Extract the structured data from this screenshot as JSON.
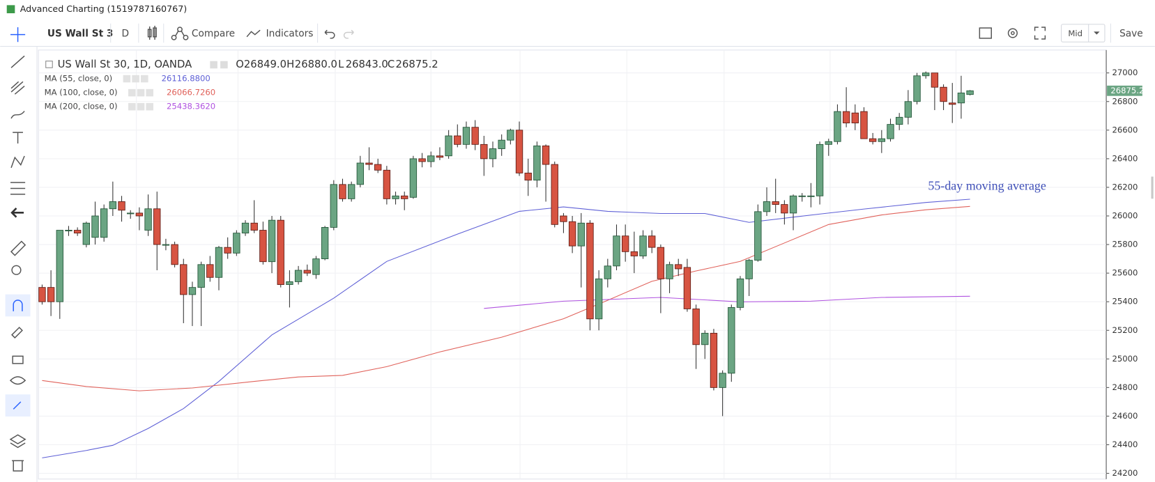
{
  "window_title": "Advanced Charting (1519787160767)",
  "toolbar": {
    "symbol": "US Wall St 3",
    "interval": "D",
    "compare": "Compare",
    "indicators": "Indicators",
    "price_mode": "Mid",
    "save": "Save"
  },
  "legend": {
    "name": "US Wall St 30, 1D, OANDA",
    "o_key": "O",
    "open": "26849.0",
    "h_key": "H",
    "high": "26880.0",
    "l_key": "L",
    "low": "26843.0",
    "c_key": "C",
    "close": "26875.2"
  },
  "chart_data": {
    "type": "candlestick",
    "open": [
      25500,
      25500,
      25400,
      25900,
      25900,
      25800,
      25850,
      25850,
      26050,
      26100,
      26020,
      26020,
      25900,
      26050,
      25800,
      25800,
      25660,
      25450,
      25500,
      25660,
      25570,
      25780,
      25740,
      25880,
      25950,
      25900,
      25680,
      25970,
      25520,
      25540,
      25620,
      25590,
      25700,
      25920,
      26220,
      26120,
      26220,
      26370,
      26360,
      26320,
      26120,
      26140,
      26130,
      26400,
      26380,
      26420,
      26420,
      26560,
      26500,
      26620,
      26500,
      26400,
      26470,
      26530,
      26600,
      26300,
      26250,
      26490,
      26360,
      26000,
      25960,
      25790,
      25950,
      25280,
      25560,
      25650,
      25860,
      25750,
      25720,
      25860,
      25780,
      25560,
      25660,
      25640,
      25350,
      25100,
      25180,
      24800,
      24900,
      25360,
      25560,
      25690,
      26030,
      26100,
      26080,
      26020,
      26140,
      26140,
      26140,
      26500,
      26520,
      26730,
      26720,
      26730,
      26540,
      26520,
      26540,
      26640,
      26690,
      26800,
      26980,
      27000,
      26900,
      26790,
      26790,
      26849
    ],
    "high": [
      25520,
      25620,
      25900,
      25930,
      25920,
      25960,
      26100,
      26080,
      26240,
      26140,
      26040,
      26060,
      26150,
      26170,
      25840,
      25820,
      25700,
      25540,
      25680,
      25720,
      25790,
      25850,
      25900,
      25970,
      26110,
      25960,
      26000,
      26000,
      25620,
      25650,
      25660,
      25720,
      25930,
      26250,
      26260,
      26240,
      26420,
      26480,
      26400,
      26350,
      26170,
      26170,
      26420,
      26440,
      26450,
      26480,
      26600,
      26640,
      26660,
      26670,
      26560,
      26520,
      26570,
      26610,
      26660,
      26400,
      26520,
      26500,
      26380,
      26020,
      26000,
      26020,
      25970,
      25620,
      25700,
      25940,
      25940,
      25890,
      25900,
      25900,
      25800,
      25680,
      25700,
      25700,
      25380,
      25200,
      25210,
      24920,
      25380,
      25580,
      25700,
      26080,
      26200,
      26260,
      26110,
      26150,
      26160,
      26230,
      26520,
      26540,
      26780,
      26900,
      26780,
      26760,
      26580,
      26600,
      26680,
      26720,
      26880,
      27000,
      27010,
      27000,
      26920,
      26930,
      26980,
      26880
    ],
    "low": [
      25380,
      25300,
      25280,
      25860,
      25860,
      25780,
      25800,
      25820,
      26000,
      25960,
      25980,
      25900,
      25860,
      25620,
      25760,
      25640,
      25250,
      25230,
      25230,
      25540,
      25480,
      25700,
      25720,
      25860,
      25880,
      25660,
      25600,
      25500,
      25360,
      25520,
      25580,
      25560,
      25690,
      25900,
      26100,
      26100,
      26200,
      26320,
      26300,
      26080,
      26080,
      26040,
      26120,
      26340,
      26340,
      26390,
      26400,
      26480,
      26470,
      26460,
      26280,
      26340,
      26420,
      26500,
      26280,
      26140,
      26200,
      26100,
      25920,
      25880,
      25740,
      25500,
      25200,
      25200,
      25500,
      25620,
      25680,
      25600,
      25700,
      25740,
      25320,
      25460,
      25580,
      25330,
      24930,
      25000,
      24780,
      24600,
      24840,
      25340,
      25440,
      25680,
      26000,
      26020,
      25940,
      25900,
      26100,
      26060,
      26080,
      26420,
      26500,
      26620,
      26600,
      26540,
      26500,
      26440,
      26520,
      26600,
      26640,
      26780,
      26960,
      26740,
      26740,
      26650,
      26680,
      26843
    ],
    "close": [
      25400,
      25400,
      25900,
      25900,
      25880,
      25950,
      26000,
      26050,
      26100,
      26040,
      26020,
      26000,
      26050,
      25800,
      25800,
      25660,
      25450,
      25500,
      25660,
      25570,
      25780,
      25740,
      25880,
      25950,
      25900,
      25680,
      25970,
      25520,
      25540,
      25620,
      25600,
      25700,
      25920,
      26220,
      26120,
      26220,
      26370,
      26360,
      26320,
      26120,
      26140,
      26120,
      26400,
      26380,
      26420,
      26410,
      26560,
      26500,
      26620,
      26500,
      26400,
      26470,
      26530,
      26600,
      26300,
      26250,
      26490,
      26360,
      25940,
      25960,
      25790,
      25950,
      25280,
      25560,
      25650,
      25860,
      25750,
      25720,
      25860,
      25780,
      25560,
      25660,
      25630,
      25350,
      25100,
      25180,
      24800,
      24900,
      25360,
      25560,
      25690,
      26030,
      26100,
      26080,
      26020,
      26140,
      26140,
      26140,
      26500,
      26520,
      26730,
      26650,
      26650,
      26540,
      26520,
      26540,
      26640,
      26690,
      26800,
      26980,
      27000,
      26900,
      26800,
      26780,
      26860,
      26875.2
    ],
    "up_color": "#6ba583",
    "down_color": "#d75442",
    "series": [
      {
        "name": "MA (55, close, 0)",
        "last_label": "26116.8800",
        "color": "#5d5fd6",
        "x": [
          0,
          5,
          8,
          12,
          16,
          20,
          26,
          33,
          39,
          47,
          54,
          59,
          64,
          70,
          75,
          80,
          87,
          93,
          100,
          105
        ],
        "values": [
          24308,
          24360,
          24396,
          24514,
          24653,
          24843,
          25168,
          25425,
          25682,
          25873,
          26032,
          26063,
          26032,
          26017,
          26017,
          25955,
          26006,
          26048,
          26094,
          26116.88
        ]
      },
      {
        "name": "MA (100, close, 0)",
        "last_label": "26066.7260",
        "color": "#e0615a",
        "x": [
          0,
          5,
          11,
          17,
          24,
          29,
          34,
          39,
          45,
          52,
          59,
          64,
          69,
          74,
          79,
          84,
          89,
          95,
          100,
          105
        ],
        "values": [
          24849,
          24807,
          24777,
          24797,
          24843,
          24874,
          24885,
          24946,
          25049,
          25152,
          25281,
          25410,
          25543,
          25615,
          25682,
          25811,
          25940,
          26007,
          26043,
          26066.73
        ]
      },
      {
        "name": "MA (200, close, 0)",
        "last_label": "25438.3620",
        "color": "#b052e0",
        "x": [
          50,
          59,
          70,
          79,
          87,
          95,
          105
        ],
        "values": [
          25353,
          25404,
          25430,
          25399,
          25404,
          25430,
          25438.36
        ]
      }
    ],
    "annotation": "55-day moving average",
    "ylim": [
      24160,
      27160
    ],
    "yticks": [
      24200,
      24400,
      24600,
      24800,
      25000,
      25200,
      25400,
      25600,
      25800,
      26000,
      26200,
      26400,
      26600,
      26800,
      27000
    ],
    "grid": true
  }
}
